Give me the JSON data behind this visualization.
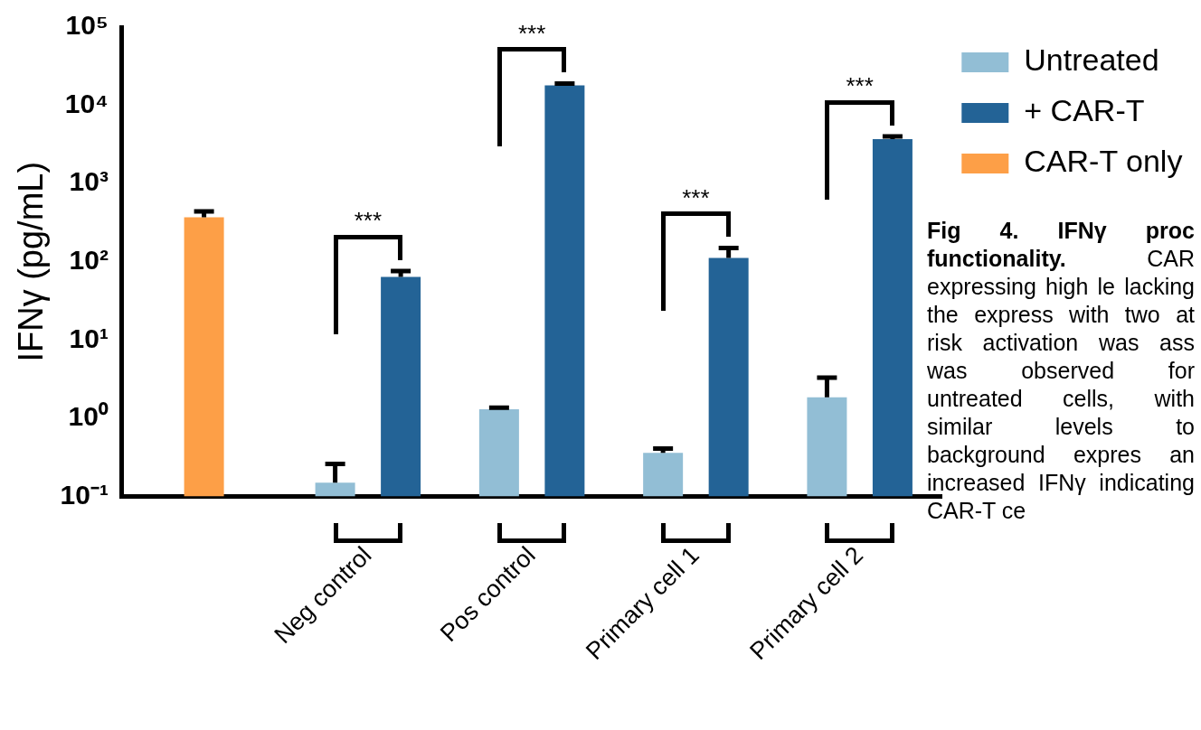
{
  "chart_data": {
    "type": "bar",
    "ylabel": "IFNγ (pg/mL)",
    "categories": [
      null,
      "Neg control",
      "Pos control",
      "Primary cell 1",
      "Primary cell 2"
    ],
    "series": [
      {
        "name": "Untreated",
        "color": "#92bed5",
        "values": [
          null,
          0.15,
          1.3,
          0.36,
          1.85
        ],
        "errors": [
          null,
          [
            0.15,
            0.26
          ],
          [
            1.3,
            1.36
          ],
          [
            0.36,
            0.41
          ],
          [
            1.85,
            3.3
          ]
        ]
      },
      {
        "name": "+ CAR-T",
        "color": "#236396",
        "values": [
          null,
          64,
          18000,
          112,
          3700
        ],
        "errors": [
          null,
          [
            64,
            76
          ],
          [
            18000,
            19000
          ],
          [
            112,
            150
          ],
          [
            3700,
            4000
          ]
        ]
      },
      {
        "name": "CAR-T only",
        "color": "#fd9f47",
        "values": [
          370,
          null,
          null,
          null,
          null
        ],
        "errors": [
          [
            370,
            440
          ],
          null,
          null,
          null,
          null
        ]
      }
    ],
    "log": "y",
    "ylim": [
      0.1,
      100000
    ],
    "yticks": [
      {
        "value": 0.1,
        "label": "10⁻¹"
      },
      {
        "value": 1,
        "label": "10⁰"
      },
      {
        "value": 10,
        "label": "10¹"
      },
      {
        "value": 100,
        "label": "10²"
      },
      {
        "value": 1000,
        "label": "10³"
      },
      {
        "value": 10000,
        "label": "10⁴"
      },
      {
        "value": 100000,
        "label": "10⁵"
      }
    ],
    "grid": false,
    "legend": "top right",
    "annotations": [
      "***",
      "***",
      "***",
      "***",
      "Fig 4. IFNγ proc functionality.",
      "CAR expressing high le lacking the express with two at risk activation was ass was observed for untreated cells, with similar levels to background expres an increased IFNγ indicating CAR-T ce"
    ]
  }
}
